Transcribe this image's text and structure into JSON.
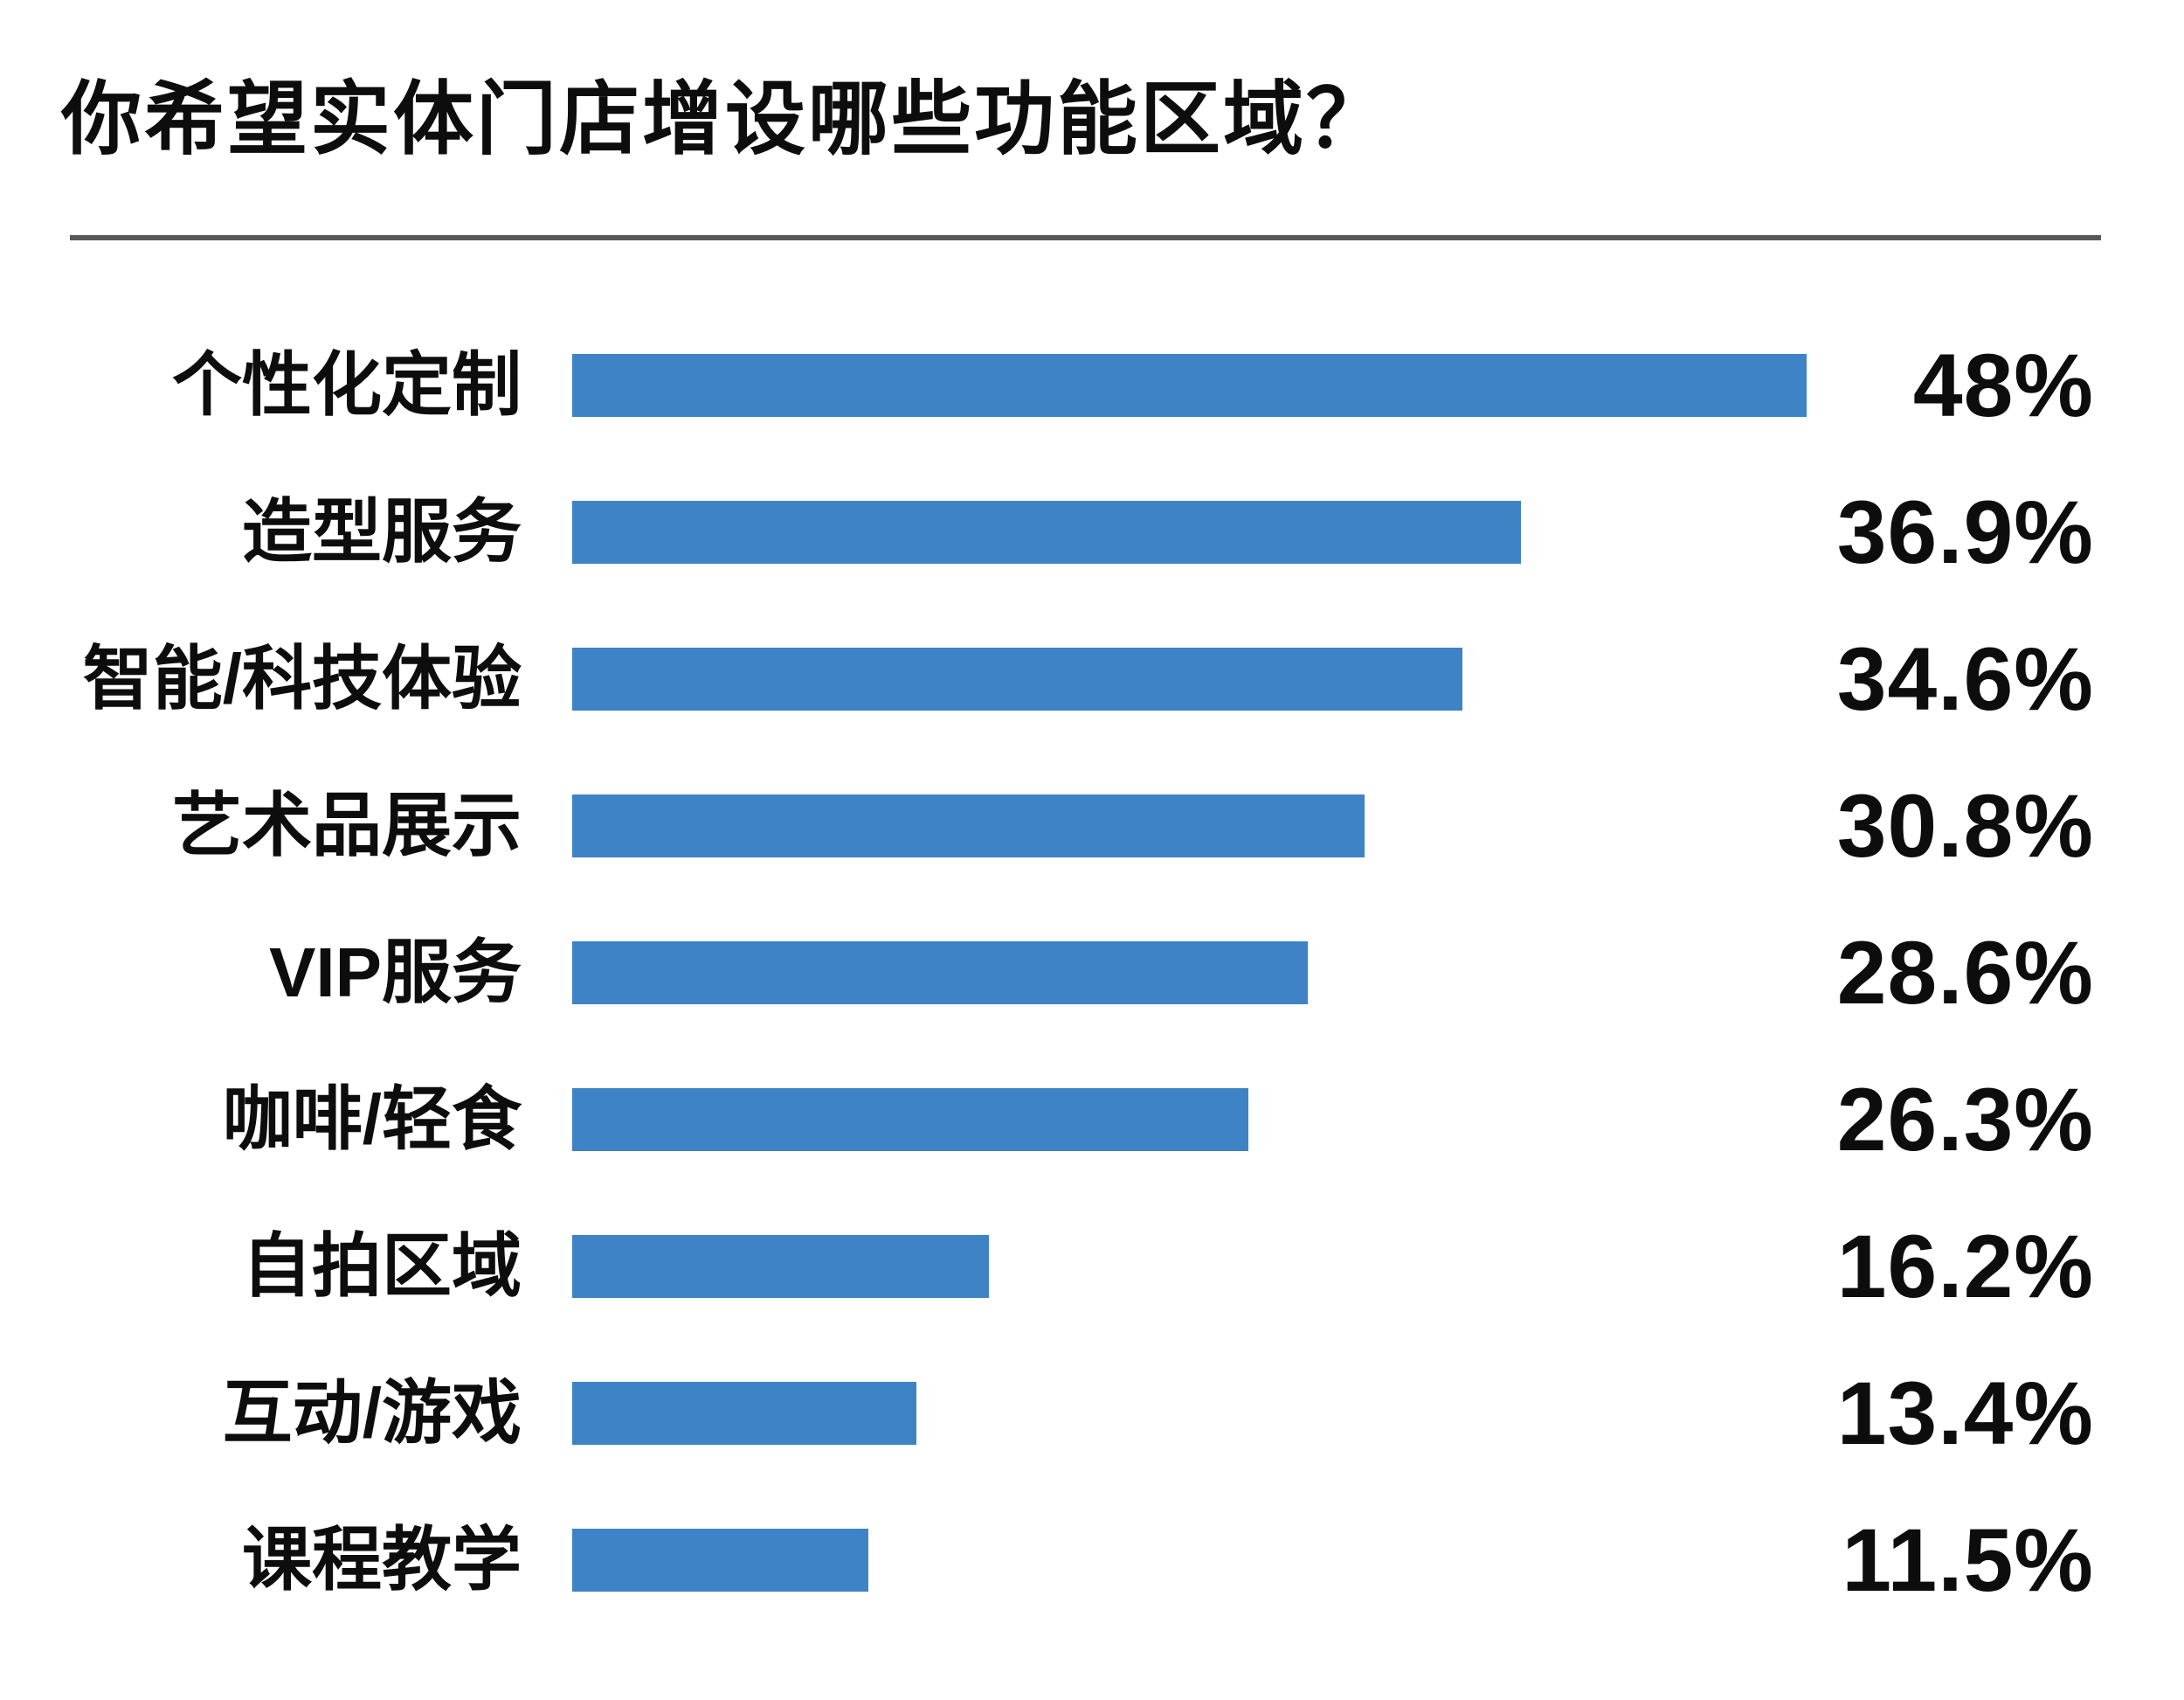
{
  "theme": {
    "background": "#ffffff",
    "bar_color": "#3d83c5",
    "text_color": "#0d0d0d",
    "divider_color": "#595959"
  },
  "chart_data": {
    "type": "bar",
    "orientation": "horizontal",
    "title": "你希望实体门店增设哪些功能区域？",
    "categories": [
      "个性化定制",
      "造型服务",
      "智能/科技体验",
      "艺术品展示",
      "VIP服务",
      "咖啡/轻食",
      "自拍区域",
      "互动/游戏",
      "课程教学"
    ],
    "values": [
      48,
      36.9,
      34.6,
      30.8,
      28.6,
      26.3,
      16.2,
      13.4,
      11.5
    ],
    "value_labels": [
      "48%",
      "36.9%",
      "34.6%",
      "30.8%",
      "28.6%",
      "26.3%",
      "16.2%",
      "13.4%",
      "11.5%"
    ],
    "axis_max": 48,
    "unit": "%",
    "grid": false,
    "legend": false,
    "xlabel": "",
    "ylabel": ""
  }
}
